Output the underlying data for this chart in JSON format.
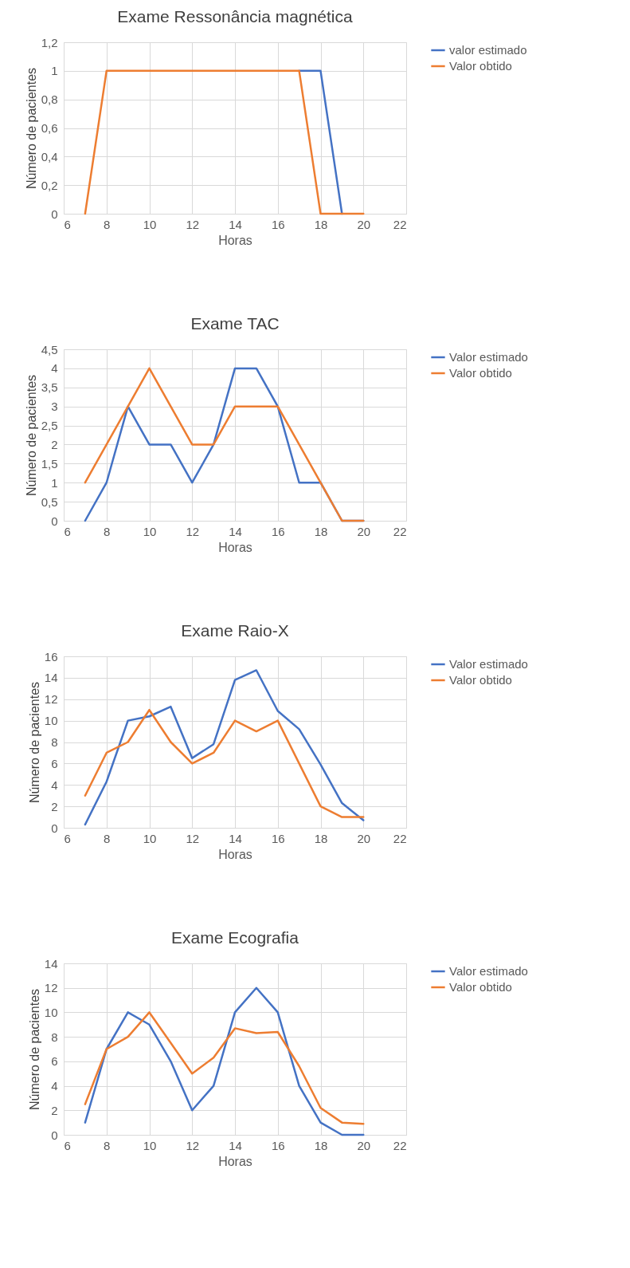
{
  "chart_data": [
    {
      "type": "line",
      "title": "Exame Ressonância magnética",
      "xlabel": "Horas",
      "ylabel": "Número de pacientes",
      "x": [
        7,
        8,
        9,
        10,
        11,
        12,
        13,
        14,
        15,
        16,
        17,
        18,
        19,
        20
      ],
      "xlim": [
        6,
        22
      ],
      "xticks": [
        6,
        8,
        10,
        12,
        14,
        16,
        18,
        20,
        22
      ],
      "ylim": [
        0,
        1.2
      ],
      "yticks": [
        0,
        {
          "value": 0.2,
          "label": "0,2"
        },
        {
          "value": 0.4,
          "label": "0,4"
        },
        {
          "value": 0.6,
          "label": "0,6"
        },
        {
          "value": 0.8,
          "label": "0,8"
        },
        1,
        {
          "value": 1.2,
          "label": "1,2"
        }
      ],
      "grid": true,
      "legend": "right",
      "line_style": "solid",
      "series": [
        {
          "name": "valor estimado",
          "color": "#4472c4",
          "values": [
            null,
            null,
            null,
            null,
            null,
            null,
            null,
            null,
            null,
            null,
            1,
            1,
            0,
            null
          ]
        },
        {
          "name": "Valor obtido",
          "color": "#ed7d31",
          "values": [
            0,
            1,
            1,
            1,
            1,
            1,
            1,
            1,
            1,
            1,
            1,
            0,
            0,
            0
          ]
        }
      ]
    },
    {
      "type": "line",
      "title": "Exame TAC",
      "xlabel": "Horas",
      "ylabel": "Número de pacientes",
      "x": [
        7,
        8,
        9,
        10,
        11,
        12,
        13,
        14,
        15,
        16,
        17,
        18,
        19,
        20
      ],
      "xlim": [
        6,
        22
      ],
      "xticks": [
        6,
        8,
        10,
        12,
        14,
        16,
        18,
        20,
        22
      ],
      "ylim": [
        0,
        4.5
      ],
      "yticks": [
        0,
        {
          "value": 0.5,
          "label": "0,5"
        },
        1,
        {
          "value": 1.5,
          "label": "1,5"
        },
        2,
        {
          "value": 2.5,
          "label": "2,5"
        },
        3,
        {
          "value": 3.5,
          "label": "3,5"
        },
        4,
        {
          "value": 4.5,
          "label": "4,5"
        }
      ],
      "grid": true,
      "legend": "right",
      "line_style": "solid",
      "series": [
        {
          "name": "Valor estimado",
          "color": "#4472c4",
          "values": [
            0,
            1,
            3,
            2,
            2,
            1,
            2,
            4,
            4,
            3,
            1,
            1,
            0,
            0
          ]
        },
        {
          "name": "Valor obtido",
          "color": "#ed7d31",
          "values": [
            1,
            2,
            3,
            4,
            3,
            2,
            2,
            3,
            3,
            3,
            2,
            1,
            0,
            0
          ]
        }
      ]
    },
    {
      "type": "line",
      "title": "Exame Raio-X",
      "xlabel": "Horas",
      "ylabel": "Número de pacientes",
      "x": [
        7,
        8,
        9,
        10,
        11,
        12,
        13,
        14,
        15,
        16,
        17,
        18,
        19,
        20
      ],
      "xlim": [
        6,
        22
      ],
      "xticks": [
        6,
        8,
        10,
        12,
        14,
        16,
        18,
        20,
        22
      ],
      "ylim": [
        0,
        16
      ],
      "yticks": [
        0,
        2,
        4,
        6,
        8,
        10,
        12,
        14,
        16
      ],
      "grid": true,
      "legend": "right",
      "line_style": "solid",
      "series": [
        {
          "name": "Valor estimado",
          "color": "#4472c4",
          "values": [
            0.3,
            4.3,
            10,
            10.4,
            11.3,
            6.5,
            7.8,
            13.8,
            14.7,
            10.9,
            9.2,
            5.9,
            2.3,
            0.7
          ]
        },
        {
          "name": "Valor obtido",
          "color": "#ed7d31",
          "values": [
            3,
            7,
            8,
            11,
            8,
            6,
            7,
            10,
            9,
            10,
            6,
            2,
            1,
            1
          ]
        }
      ]
    },
    {
      "type": "line",
      "title": "Exame Ecografia",
      "xlabel": "Horas",
      "ylabel": "Número de pacientes",
      "x": [
        7,
        8,
        9,
        10,
        11,
        12,
        13,
        14,
        15,
        16,
        17,
        18,
        19,
        20
      ],
      "xlim": [
        6,
        22
      ],
      "xticks": [
        6,
        8,
        10,
        12,
        14,
        16,
        18,
        20,
        22
      ],
      "ylim": [
        0,
        14
      ],
      "yticks": [
        0,
        2,
        4,
        6,
        8,
        10,
        12,
        14
      ],
      "grid": true,
      "legend": "right",
      "line_style": "solid",
      "series": [
        {
          "name": "Valor estimado",
          "color": "#4472c4",
          "values": [
            1,
            7,
            10,
            9,
            6,
            2,
            4,
            10,
            12,
            10,
            4,
            1,
            0,
            0
          ]
        },
        {
          "name": "Valor obtido",
          "color": "#ed7d31",
          "values": [
            2.5,
            7,
            8,
            10,
            7.5,
            5,
            6.3,
            8.7,
            8.3,
            8.4,
            5.6,
            2.2,
            1,
            0.9
          ]
        }
      ]
    }
  ]
}
